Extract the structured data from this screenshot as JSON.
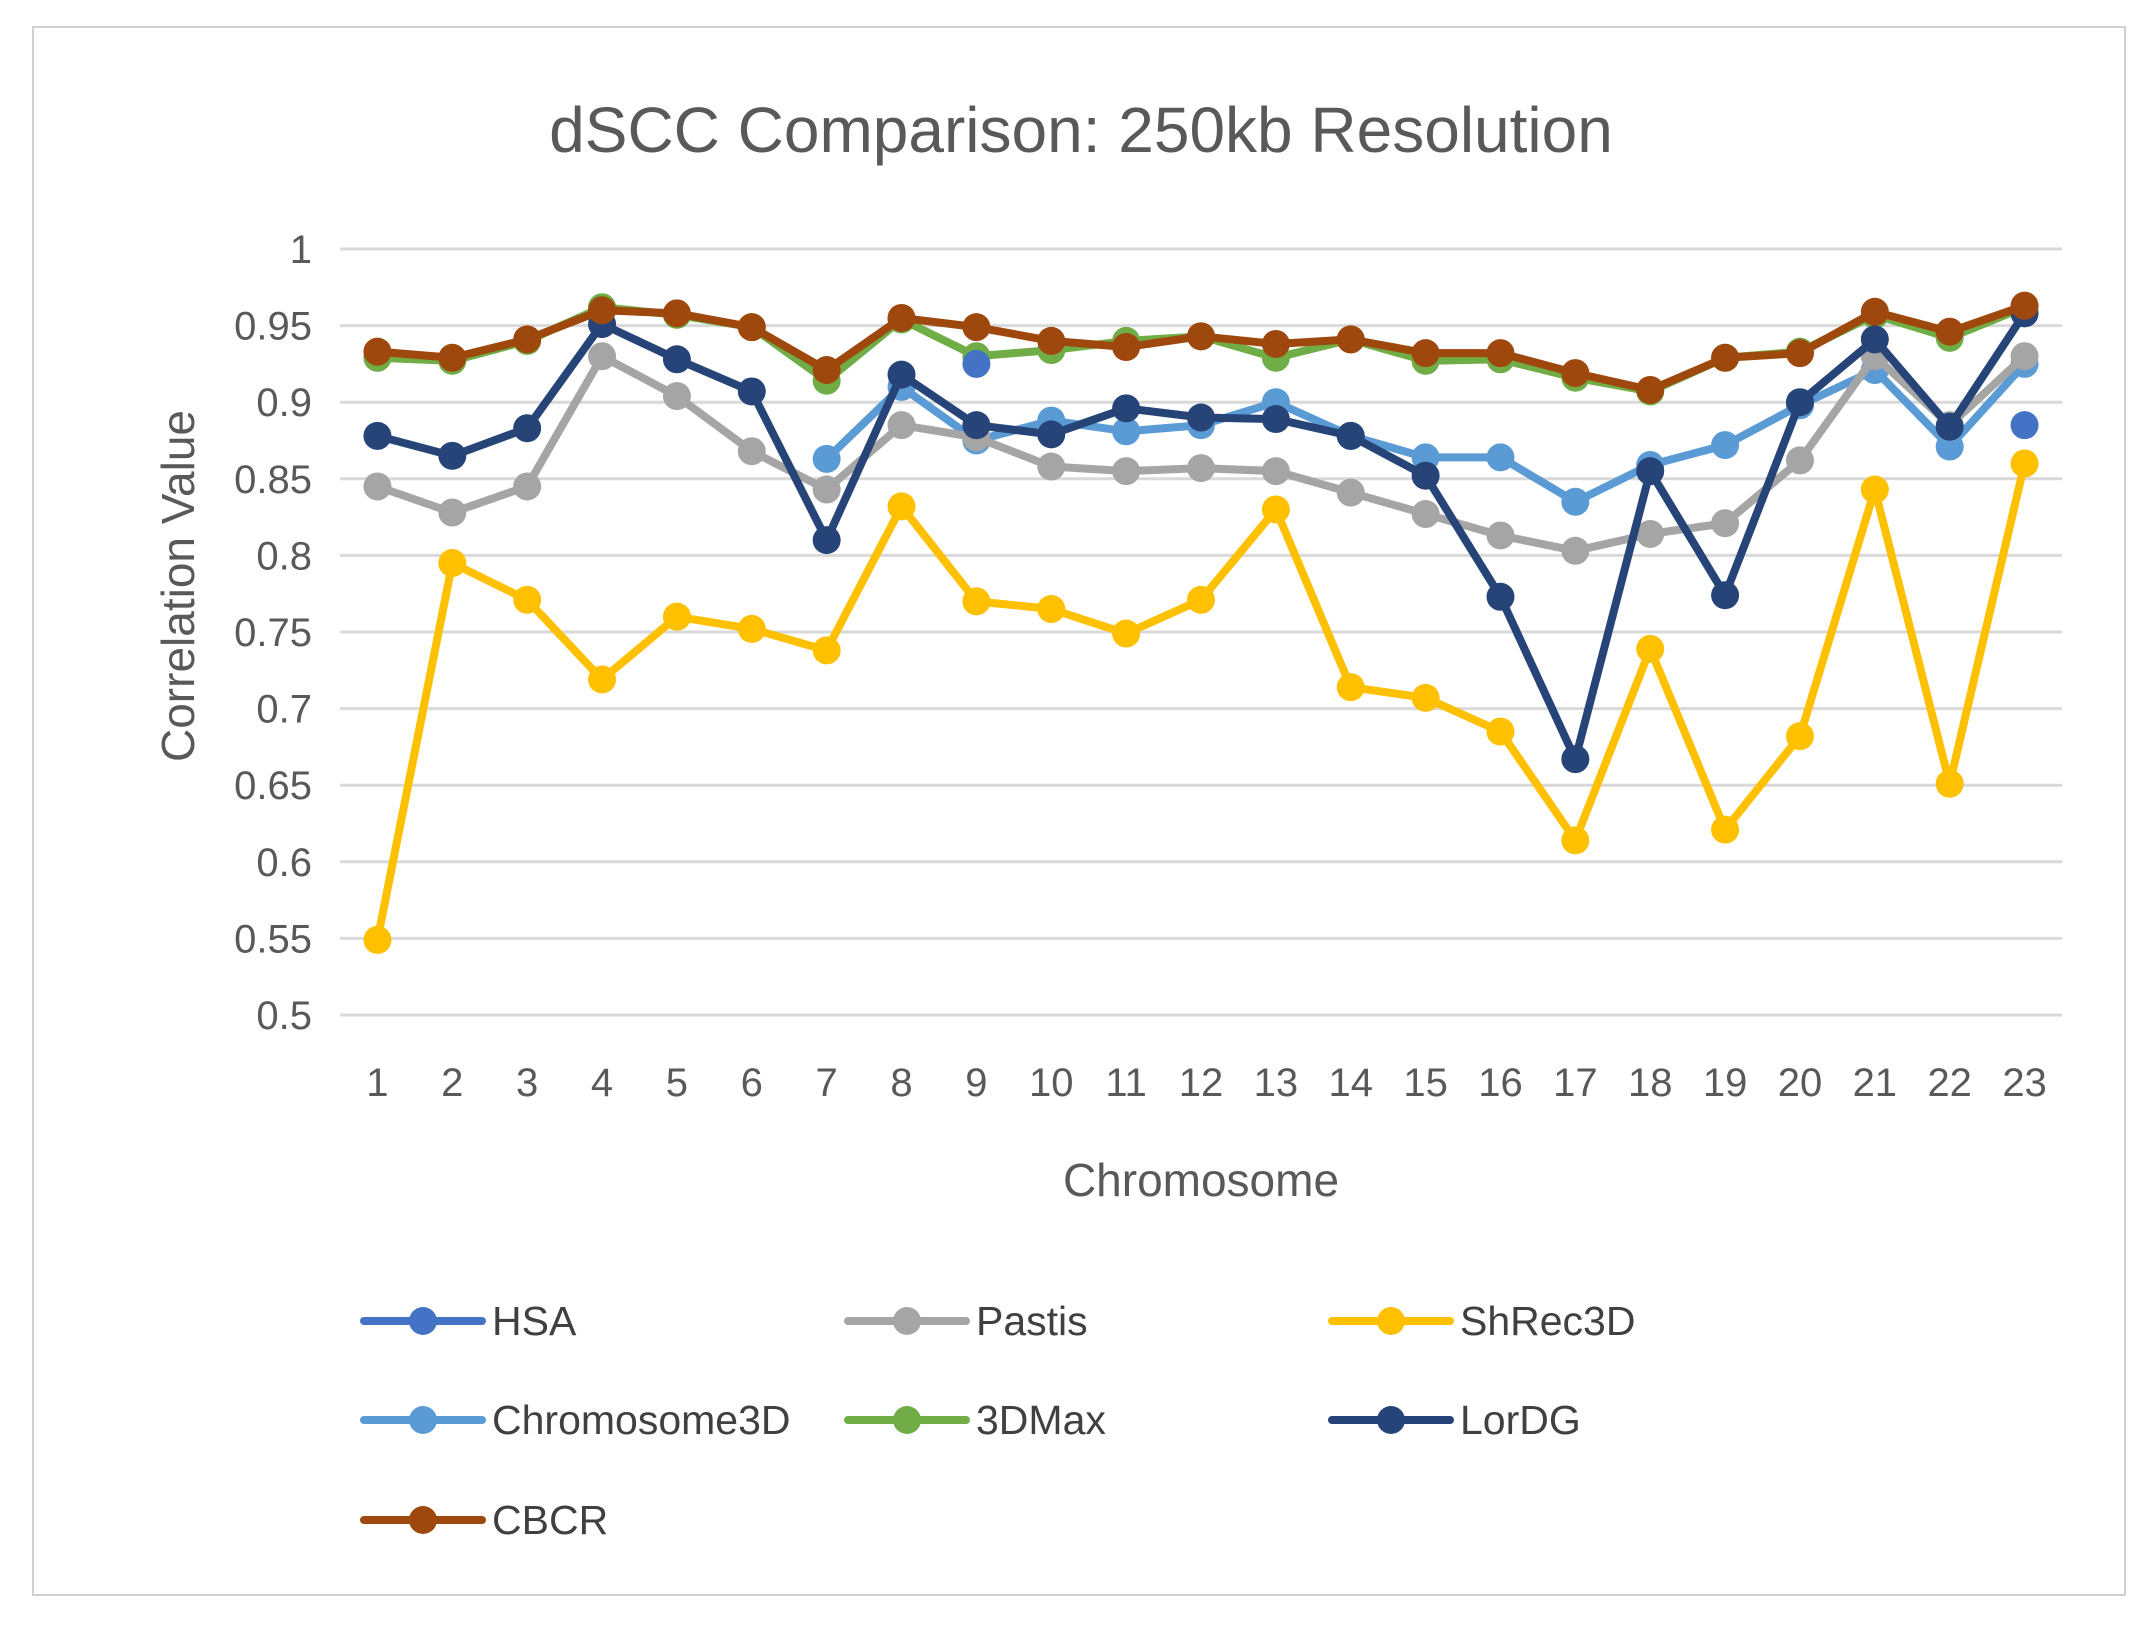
{
  "chart_data": {
    "type": "line",
    "title": "dSCC Comparison: 250kb Resolution",
    "xlabel": "Chromosome",
    "ylabel": "Correlation Value",
    "ylim": [
      0.5,
      1
    ],
    "yticks": [
      "0.5",
      "0.55",
      "0.6",
      "0.65",
      "0.7",
      "0.75",
      "0.8",
      "0.85",
      "0.9",
      "0.95",
      "1"
    ],
    "categories": [
      "1",
      "2",
      "3",
      "4",
      "5",
      "6",
      "7",
      "8",
      "9",
      "10",
      "11",
      "12",
      "13",
      "14",
      "15",
      "16",
      "17",
      "18",
      "19",
      "20",
      "21",
      "22",
      "23"
    ],
    "grid": true,
    "legend_position": "bottom",
    "series": [
      {
        "name": "HSA",
        "color": "#4472c4",
        "markers_only_from": 22,
        "values": [
          null,
          null,
          null,
          null,
          null,
          null,
          null,
          null,
          0.925,
          null,
          null,
          null,
          null,
          null,
          null,
          null,
          null,
          null,
          null,
          null,
          null,
          null,
          0.885
        ]
      },
      {
        "name": "Pastis",
        "color": "#a5a5a5",
        "values": [
          0.845,
          0.828,
          0.845,
          0.93,
          0.904,
          0.868,
          0.843,
          0.885,
          0.877,
          0.858,
          0.855,
          0.857,
          0.855,
          0.841,
          0.827,
          0.813,
          0.803,
          0.814,
          0.821,
          0.862,
          0.93,
          0.885,
          0.93
        ]
      },
      {
        "name": "ShRec3D",
        "color": "#ffc000",
        "values": [
          0.549,
          0.795,
          0.771,
          0.719,
          0.76,
          0.752,
          0.738,
          0.832,
          0.77,
          0.765,
          0.749,
          0.771,
          0.83,
          0.714,
          0.707,
          0.685,
          0.614,
          0.739,
          0.621,
          0.682,
          0.843,
          0.651,
          0.86
        ]
      },
      {
        "name": "Chromosome3D",
        "color": "#5b9bd5",
        "values": [
          null,
          null,
          null,
          null,
          null,
          null,
          0.863,
          0.91,
          0.875,
          0.888,
          0.881,
          0.885,
          0.9,
          0.878,
          0.864,
          0.864,
          0.835,
          0.859,
          0.872,
          0.898,
          0.921,
          0.871,
          0.925
        ]
      },
      {
        "name": "3DMax",
        "color": "#70ad47",
        "values": [
          0.929,
          0.927,
          0.94,
          0.962,
          0.957,
          0.949,
          0.914,
          0.954,
          0.93,
          0.934,
          0.94,
          0.943,
          0.929,
          0.941,
          0.927,
          0.928,
          0.916,
          0.907,
          0.929,
          0.933,
          0.957,
          0.942,
          0.962
        ]
      },
      {
        "name": "LorDG",
        "color": "#264478",
        "values": [
          0.878,
          0.865,
          0.883,
          0.951,
          0.928,
          0.907,
          0.81,
          0.918,
          0.885,
          0.879,
          0.896,
          0.89,
          0.889,
          0.878,
          0.852,
          0.773,
          0.667,
          0.855,
          0.774,
          0.9,
          0.941,
          0.884,
          0.958
        ]
      },
      {
        "name": "CBCR",
        "color": "#9e480e",
        "values": [
          0.933,
          0.929,
          0.941,
          0.96,
          0.958,
          0.949,
          0.921,
          0.955,
          0.949,
          0.94,
          0.936,
          0.943,
          0.938,
          0.941,
          0.932,
          0.932,
          0.919,
          0.908,
          0.929,
          0.932,
          0.959,
          0.946,
          0.963
        ]
      }
    ]
  }
}
